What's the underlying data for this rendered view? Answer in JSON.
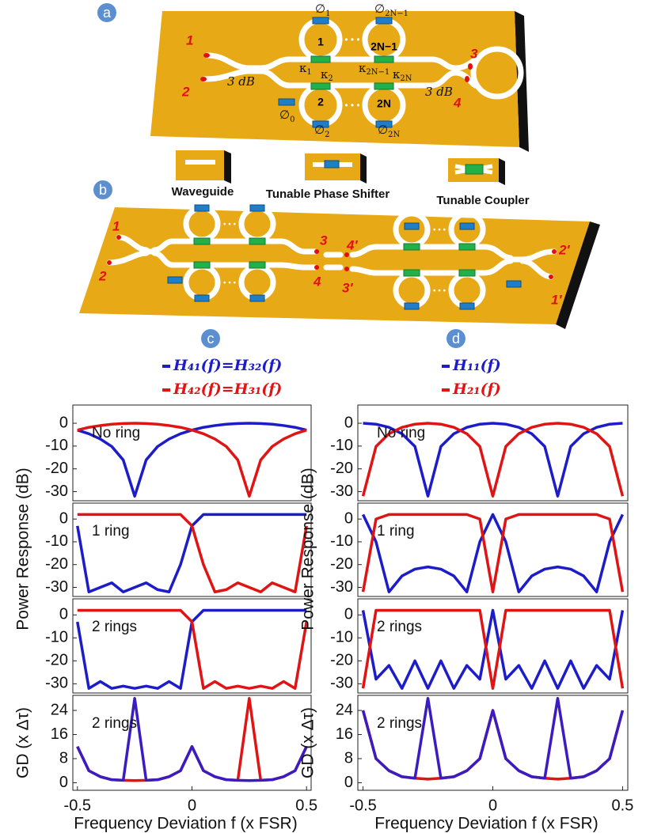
{
  "diagram": {
    "panel_labels": [
      "a",
      "b",
      "c",
      "d"
    ],
    "a": {
      "ports": [
        "1",
        "2",
        "3",
        "4"
      ],
      "couplers_3db": [
        "3 dB",
        "3 dB"
      ],
      "rings": [
        "1",
        "2N−1",
        "2",
        "2N"
      ],
      "phases": [
        {
          "base": "∅",
          "sub": "1"
        },
        {
          "base": "∅",
          "sub": "2N−1"
        },
        {
          "base": "∅",
          "sub": "0"
        },
        {
          "base": "∅",
          "sub": "2"
        },
        {
          "base": "∅",
          "sub": "2N"
        }
      ],
      "kappas": [
        {
          "base": "κ",
          "sub": "1"
        },
        {
          "base": "κ",
          "sub": "2N−1"
        },
        {
          "base": "κ",
          "sub": "2"
        },
        {
          "base": "κ",
          "sub": "2N"
        }
      ]
    },
    "components": [
      "Waveguide",
      "Tunable Phase Shifter",
      "Tunable Coupler"
    ],
    "b": {
      "ports": [
        "1",
        "2",
        "3",
        "4",
        "4′",
        "3′",
        "2′",
        "1′"
      ]
    }
  },
  "chart_data": [
    {
      "type": "line",
      "text": "No ring",
      "x": [
        -0.5,
        -0.45,
        -0.4,
        -0.35,
        -0.3,
        -0.25,
        -0.2,
        -0.15,
        -0.1,
        -0.05,
        0,
        0.05,
        0.1,
        0.15,
        0.2,
        0.25,
        0.3,
        0.35,
        0.4,
        0.45,
        0.5
      ],
      "series": [
        {
          "name": "H₄₁(f)=H₃₂(f)",
          "color": "#1c1cc8",
          "values": [
            -3.0,
            -4.6,
            -6.9,
            -10.2,
            -16.1,
            -32,
            -16.1,
            -10.2,
            -6.9,
            -4.6,
            -3.0,
            -1.8,
            -1.0,
            -0.4,
            -0.1,
            0,
            -0.1,
            -0.4,
            -1.0,
            -1.8,
            -3.0
          ]
        },
        {
          "name": "H₄₂(f)=H₃₁(f)",
          "color": "#e01414",
          "values": [
            -3.0,
            -1.8,
            -1.0,
            -0.4,
            -0.1,
            0,
            -0.1,
            -0.4,
            -1.0,
            -1.8,
            -3.0,
            -4.6,
            -6.9,
            -10.2,
            -16.1,
            -32,
            -16.1,
            -10.2,
            -6.9,
            -4.6,
            -3.0
          ]
        }
      ],
      "xlim": [
        -0.52,
        0.52
      ],
      "ylim": [
        -34,
        8
      ],
      "yticks": [
        0,
        -10,
        -20,
        -30
      ]
    },
    {
      "type": "line",
      "text": "1 ring",
      "ylabel": "Power Response (dB)",
      "x": [
        -0.5,
        -0.45,
        -0.4,
        -0.35,
        -0.3,
        -0.25,
        -0.2,
        -0.15,
        -0.1,
        -0.05,
        0,
        0.05,
        0.1,
        0.15,
        0.2,
        0.25,
        0.3,
        0.35,
        0.4,
        0.45,
        0.5
      ],
      "series": [
        {
          "color": "#1c1cc8",
          "values": [
            -3,
            -32,
            -30,
            -28,
            -32,
            -30,
            -28,
            -31,
            -32,
            -20,
            -3,
            2,
            2,
            2,
            2,
            2,
            2,
            2,
            2,
            2,
            2
          ]
        },
        {
          "color": "#e01414",
          "values": [
            2,
            2,
            2,
            2,
            2,
            2,
            2,
            2,
            2,
            2,
            -3,
            -20,
            -32,
            -31,
            -28,
            -30,
            -32,
            -28,
            -30,
            -32,
            -3
          ]
        }
      ],
      "xlim": [
        -0.52,
        0.52
      ],
      "ylim": [
        -34,
        7
      ],
      "yticks": [
        0,
        -10,
        -20,
        -30
      ]
    },
    {
      "type": "line",
      "text": "2 rings",
      "x": [
        -0.5,
        -0.45,
        -0.4,
        -0.35,
        -0.3,
        -0.25,
        -0.2,
        -0.15,
        -0.1,
        -0.05,
        0,
        0.05,
        0.1,
        0.15,
        0.2,
        0.25,
        0.3,
        0.35,
        0.4,
        0.45,
        0.5
      ],
      "series": [
        {
          "color": "#1c1cc8",
          "values": [
            -3,
            -32,
            -29,
            -32,
            -31,
            -32,
            -31,
            -32,
            -29,
            -32,
            -3,
            2,
            2,
            2,
            2,
            2,
            2,
            2,
            2,
            2,
            2
          ]
        },
        {
          "color": "#e01414",
          "values": [
            2,
            2,
            2,
            2,
            2,
            2,
            2,
            2,
            2,
            2,
            -3,
            -32,
            -29,
            -32,
            -31,
            -32,
            -31,
            -32,
            -29,
            -32,
            -3
          ]
        }
      ],
      "xlim": [
        -0.52,
        0.52
      ],
      "ylim": [
        -34,
        7
      ],
      "yticks": [
        0,
        -10,
        -20,
        -30
      ]
    },
    {
      "type": "line",
      "text": "2 rings",
      "ylabel": "GD (x Δτ)",
      "xlabel": "Frequency Deviation f (x FSR)",
      "x": [
        -0.5,
        -0.45,
        -0.4,
        -0.35,
        -0.3,
        -0.25,
        -0.2,
        -0.15,
        -0.1,
        -0.05,
        0,
        0.05,
        0.1,
        0.15,
        0.2,
        0.25,
        0.3,
        0.35,
        0.4,
        0.45,
        0.5
      ],
      "series": [
        {
          "color": "#e01414",
          "values": [
            12,
            4,
            2,
            1,
            0.8,
            0.7,
            0.8,
            1,
            2,
            4,
            12,
            4,
            2,
            1,
            0.8,
            28,
            0.8,
            1,
            2,
            4,
            12
          ]
        },
        {
          "color": "#3a1cc0",
          "values": [
            12,
            4,
            2,
            1,
            0.8,
            28,
            0.8,
            1,
            2,
            4,
            12,
            4,
            2,
            1,
            0.8,
            0.7,
            0.8,
            1,
            2,
            4,
            12
          ]
        }
      ],
      "xlim": [
        -0.52,
        0.52
      ],
      "ylim": [
        -2.5,
        29
      ],
      "yticks": [
        0,
        8,
        16,
        24
      ],
      "xticks": [
        -0.5,
        0,
        0.5
      ]
    },
    {
      "type": "line",
      "text": "No ring",
      "x": [
        -0.5,
        -0.45,
        -0.4,
        -0.35,
        -0.3,
        -0.25,
        -0.2,
        -0.15,
        -0.1,
        -0.05,
        0,
        0.05,
        0.1,
        0.15,
        0.2,
        0.25,
        0.3,
        0.35,
        0.4,
        0.45,
        0.5
      ],
      "series": [
        {
          "name": "H₁₁(f)",
          "color": "#1c1cc8",
          "values": [
            0,
            -0.4,
            -1.8,
            -4.6,
            -10.2,
            -32,
            -10.2,
            -4.6,
            -1.8,
            -0.4,
            0,
            -0.4,
            -1.8,
            -4.6,
            -10.2,
            -32,
            -10.2,
            -4.6,
            -1.8,
            -0.4,
            0
          ]
        },
        {
          "name": "H₂₁(f)",
          "color": "#e01414",
          "values": [
            -32,
            -10.2,
            -4.6,
            -1.8,
            -0.4,
            0,
            -0.4,
            -1.8,
            -4.6,
            -10.2,
            -32,
            -10.2,
            -4.6,
            -1.8,
            -0.4,
            0,
            -0.4,
            -1.8,
            -4.6,
            -10.2,
            -32
          ]
        }
      ],
      "xlim": [
        -0.52,
        0.52
      ],
      "ylim": [
        -34,
        8
      ],
      "yticks": [
        0,
        -10,
        -20,
        -30
      ]
    },
    {
      "type": "line",
      "text": "1 ring",
      "ylabel": "Power Response (dB)",
      "x": [
        -0.5,
        -0.45,
        -0.4,
        -0.35,
        -0.3,
        -0.25,
        -0.2,
        -0.15,
        -0.1,
        -0.05,
        0,
        0.05,
        0.1,
        0.15,
        0.2,
        0.25,
        0.3,
        0.35,
        0.4,
        0.45,
        0.5
      ],
      "series": [
        {
          "color": "#1c1cc8",
          "values": [
            2,
            -10,
            -32,
            -25,
            -22,
            -21,
            -22,
            -25,
            -32,
            -10,
            2,
            -10,
            -32,
            -25,
            -22,
            -21,
            -22,
            -25,
            -32,
            -10,
            2
          ]
        },
        {
          "color": "#e01414",
          "values": [
            -32,
            0,
            2,
            2,
            2,
            2,
            2,
            2,
            2,
            0,
            -32,
            0,
            2,
            2,
            2,
            2,
            2,
            2,
            2,
            0,
            -32
          ]
        }
      ],
      "xlim": [
        -0.52,
        0.52
      ],
      "ylim": [
        -34,
        7
      ],
      "yticks": [
        0,
        -10,
        -20,
        -30
      ]
    },
    {
      "type": "line",
      "text": "2 rings",
      "x": [
        -0.5,
        -0.45,
        -0.4,
        -0.35,
        -0.3,
        -0.25,
        -0.2,
        -0.15,
        -0.1,
        -0.05,
        0,
        0.05,
        0.1,
        0.15,
        0.2,
        0.25,
        0.3,
        0.35,
        0.4,
        0.45,
        0.5
      ],
      "series": [
        {
          "color": "#1c1cc8",
          "values": [
            2,
            -28,
            -22,
            -32,
            -20,
            -32,
            -20,
            -32,
            -22,
            -28,
            2,
            -28,
            -22,
            -32,
            -20,
            -32,
            -20,
            -32,
            -22,
            -28,
            2
          ]
        },
        {
          "color": "#e01414",
          "values": [
            -32,
            2,
            2,
            2,
            2,
            2,
            2,
            2,
            2,
            2,
            -32,
            2,
            2,
            2,
            2,
            2,
            2,
            2,
            2,
            2,
            -32
          ]
        }
      ],
      "xlim": [
        -0.52,
        0.52
      ],
      "ylim": [
        -34,
        7
      ],
      "yticks": [
        0,
        -10,
        -20,
        -30
      ]
    },
    {
      "type": "line",
      "text": "2 rings",
      "ylabel": "GD (x Δτ)",
      "xlabel": "Frequency Deviation f (x FSR)",
      "x": [
        -0.5,
        -0.45,
        -0.4,
        -0.35,
        -0.3,
        -0.25,
        -0.2,
        -0.15,
        -0.1,
        -0.05,
        0,
        0.05,
        0.1,
        0.15,
        0.2,
        0.25,
        0.3,
        0.35,
        0.4,
        0.45,
        0.5
      ],
      "series": [
        {
          "color": "#e01414",
          "values": [
            24,
            8,
            4,
            2,
            1.5,
            1.2,
            1.5,
            2,
            4,
            8,
            24,
            8,
            4,
            2,
            1.5,
            1.2,
            1.5,
            2,
            4,
            8,
            24
          ]
        },
        {
          "color": "#3a1cc0",
          "values": [
            24,
            8,
            4,
            2,
            1.5,
            28,
            1.5,
            2,
            4,
            8,
            24,
            8,
            4,
            2,
            1.5,
            28,
            1.5,
            2,
            4,
            8,
            24
          ]
        }
      ],
      "xlim": [
        -0.52,
        0.52
      ],
      "ylim": [
        -2.5,
        29
      ],
      "yticks": [
        0,
        8,
        16,
        24
      ],
      "xticks": [
        -0.5,
        0,
        0.5
      ]
    }
  ]
}
